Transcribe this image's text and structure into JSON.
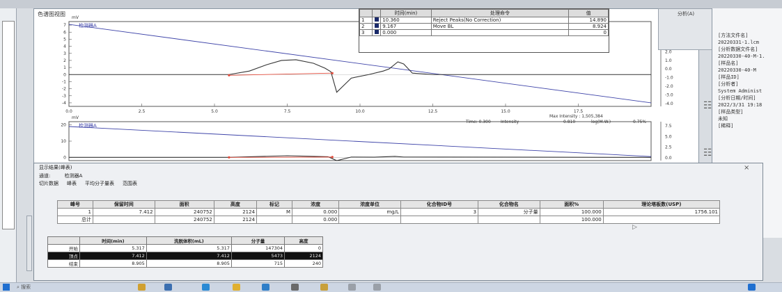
{
  "window": {
    "title": "色谱图视图"
  },
  "chart_data": [
    {
      "type": "line",
      "title": "检测器A",
      "xlabel": "",
      "ylabel": "mV",
      "x_ticks": [
        "0.0",
        "2.5",
        "5.0",
        "7.5",
        "10.0",
        "12.5",
        "15.0",
        "17.5"
      ],
      "y_ticks": [
        "7",
        "6",
        "5",
        "4",
        "3",
        "2",
        "1",
        "0",
        "-1",
        "-2",
        "-3",
        "-4"
      ],
      "right_ticks": [
        "5.0",
        "4.0",
        "3.0",
        "2.0",
        "1.0",
        "0.0",
        "-1.0",
        "-2.0",
        "-3.0",
        "-4.0"
      ],
      "xlim": [
        0,
        20
      ],
      "ylim": [
        -4.5,
        7.5
      ],
      "series": [
        {
          "role": "calibration-line",
          "color": "#3d43a8",
          "x": [
            0,
            20
          ],
          "y": [
            7.1,
            -4.0
          ]
        },
        {
          "role": "chromatogram",
          "color": "#333333",
          "x": [
            0,
            5.5,
            6.2,
            6.8,
            7.3,
            7.8,
            8.4,
            8.8,
            9.0,
            9.2,
            9.45,
            9.7,
            10.3,
            10.8,
            11.0,
            11.3,
            11.5,
            11.8,
            12.5,
            20
          ],
          "y": [
            0.0,
            0.0,
            0.5,
            1.4,
            2.0,
            2.1,
            1.6,
            0.9,
            0.4,
            -2.5,
            -1.5,
            -0.5,
            0.0,
            0.5,
            0.8,
            1.8,
            1.5,
            0.2,
            0.0,
            0.0
          ]
        },
        {
          "role": "baseline",
          "color": "#e04a3a",
          "x": [
            5.5,
            9.05
          ],
          "y": [
            -0.1,
            0.2
          ]
        }
      ]
    },
    {
      "type": "line",
      "title": "检测器A",
      "xlabel": "",
      "ylabel": "mV",
      "y_ticks": [
        "20",
        "10",
        "0"
      ],
      "right_ticks": [
        "7.5",
        "5.0",
        "2.5",
        "0.0"
      ],
      "annotations": [
        "Max Intensity : 1,505,384",
        "Time: 0.300",
        "Intensity",
        "0.810",
        "log(M.W.)",
        "0.75%"
      ],
      "xlim": [
        0,
        20
      ],
      "ylim": [
        -2,
        22
      ],
      "series": [
        {
          "role": "calibration-line",
          "color": "#3d43a8",
          "x": [
            0,
            20
          ],
          "y": [
            19,
            0.5
          ]
        },
        {
          "role": "chromatogram",
          "color": "#333333",
          "x": [
            0,
            5.5,
            7.5,
            8.9,
            9.2,
            9.7,
            10.5,
            11.2,
            11.5,
            20
          ],
          "y": [
            0,
            0,
            1.0,
            0.4,
            -2.0,
            0.2,
            0.1,
            0.6,
            0.2,
            0
          ]
        },
        {
          "role": "baseline",
          "color": "#e04a3a",
          "x": [
            5.5,
            9.05
          ],
          "y": [
            0,
            0.2
          ]
        }
      ]
    }
  ],
  "peak_table": {
    "headers": [
      "",
      "",
      "时间(min)",
      "处理命令",
      "值"
    ],
    "rows": [
      [
        "1",
        "",
        "10.360",
        "Reject Peaks(No Correction)",
        "14.890"
      ],
      [
        "2",
        "",
        "9.167",
        "Move BL",
        "8.924"
      ],
      [
        "3",
        "",
        "0.000",
        "",
        "0"
      ]
    ]
  },
  "right_button": {
    "label": "分析(A)"
  },
  "right_panel": {
    "lines": [
      "[方法文件名]",
      "20220331-1.lcm",
      "[分析数据文件名]",
      "20220330-40-M-1.",
      "[样品名]",
      "20220330-40-M",
      "[样品ID]",
      "",
      "[分析者]",
      "System Administ",
      "[分析日期/时间]",
      "2022/3/31 19:18",
      "[样品类型]",
      "未知",
      "[稀释]",
      ""
    ]
  },
  "dialog": {
    "title": "显示结果(峰表)",
    "channel_label": "通道:",
    "channel_value": "检测器A",
    "tabs": [
      "切片数据",
      "峰表",
      "平均分子量表",
      "范围表"
    ],
    "result_headers": [
      "峰号",
      "保留时间",
      "面积",
      "高度",
      "标记",
      "浓度",
      "浓度单位",
      "化合物ID号",
      "化合物名",
      "面积%",
      "理论塔板数(USP)"
    ],
    "result_rows": [
      [
        "1",
        "7.412",
        "240752",
        "2124",
        "M",
        "0.000",
        "mg/L",
        "3",
        "分子量",
        "100.000",
        "1756.101"
      ],
      [
        "总计",
        "",
        "240752",
        "2124",
        "",
        "0.000",
        "",
        "",
        "",
        "100.000",
        ""
      ]
    ],
    "mw_headers": [
      "",
      "时间(min)",
      "洗脱体积(mL)",
      "分子量",
      "高度"
    ],
    "mw_rows": [
      [
        "开始",
        "5.317",
        "5.317",
        "147304",
        "0"
      ],
      [
        "顶点",
        "7.412",
        "7.412",
        "5473",
        "2124"
      ],
      [
        "结束",
        "8.905",
        "8.905",
        "715",
        "240"
      ]
    ],
    "close_label": "×"
  },
  "taskbar": {
    "search": "搜索"
  }
}
